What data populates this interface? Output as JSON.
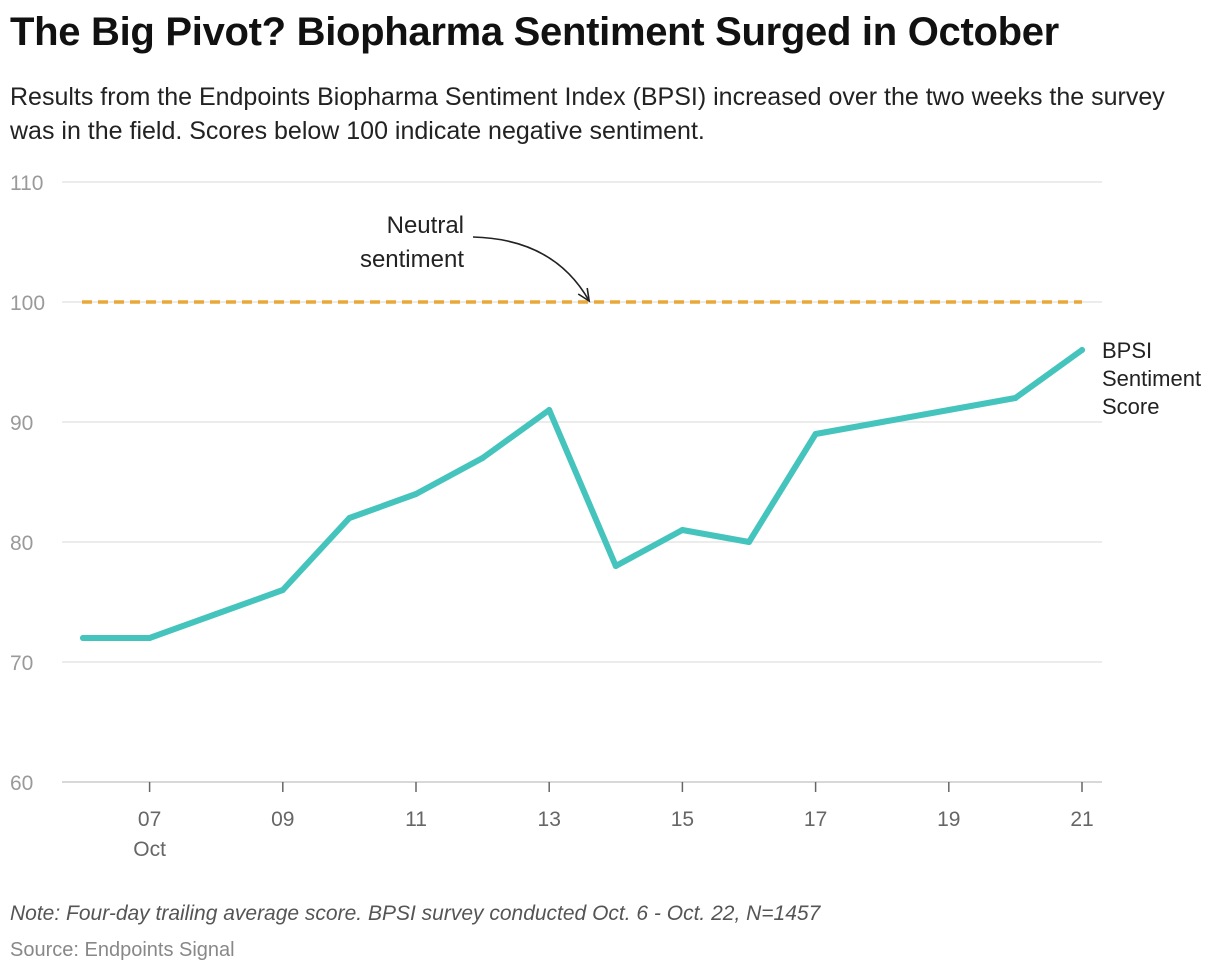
{
  "title": "The Big Pivot? Biopharma Sentiment Surged in October",
  "subtitle": "Results from the Endpoints Biopharma Sentiment Index (BPSI) increased over the two weeks the survey was in the field. Scores below 100 indicate negative sentiment.",
  "note": "Note: Four-day trailing average score. BPSI survey conducted Oct. 6 - Oct. 22, N=1457",
  "source": "Source: Endpoints Signal",
  "chart_data": {
    "type": "line",
    "title": "The Big Pivot? Biopharma Sentiment Surged in October",
    "subtitle": "Results from the Endpoints Biopharma Sentiment Index (BPSI) increased over the two weeks the survey was in the field. Scores below 100 indicate negative sentiment.",
    "xlabel": "",
    "ylabel": "",
    "x": [
      "2023-10-06",
      "2023-10-07",
      "2023-10-08",
      "2023-10-09",
      "2023-10-10",
      "2023-10-11",
      "2023-10-12",
      "2023-10-13",
      "2023-10-14",
      "2023-10-15",
      "2023-10-16",
      "2023-10-17",
      "2023-10-18",
      "2023-10-19",
      "2023-10-20",
      "2023-10-21"
    ],
    "series": [
      {
        "name": "BPSI Sentiment Score",
        "label_lines": [
          "BPSI",
          "Sentiment",
          "Score"
        ],
        "color": "#45c4bd",
        "values": [
          72,
          72,
          74,
          76,
          82,
          84,
          87,
          91,
          78,
          81,
          80,
          89,
          90,
          91,
          92,
          96
        ]
      }
    ],
    "ylim": [
      60,
      110
    ],
    "yticks": [
      60,
      70,
      80,
      90,
      100,
      110
    ],
    "xticks": [
      {
        "date": "2023-10-07",
        "label": "07",
        "sublabel": "Oct"
      },
      {
        "date": "2023-10-09",
        "label": "09"
      },
      {
        "date": "2023-10-11",
        "label": "11"
      },
      {
        "date": "2023-10-13",
        "label": "13"
      },
      {
        "date": "2023-10-15",
        "label": "15"
      },
      {
        "date": "2023-10-17",
        "label": "17"
      },
      {
        "date": "2023-10-19",
        "label": "19"
      },
      {
        "date": "2023-10-21",
        "label": "21"
      }
    ],
    "reference_line": {
      "value": 100,
      "color": "#e8a93a",
      "style": "dashed"
    },
    "annotation": {
      "lines": [
        "Neutral",
        "sentiment"
      ],
      "target": {
        "date": "2023-10-13",
        "value": 100
      }
    },
    "grid": true,
    "legend": "inline-end",
    "colors": {
      "grid": "#e1e1e1",
      "axis": "#cccccc",
      "tick_text": "#9a9a9a",
      "x_tick_text": "#666666"
    }
  }
}
